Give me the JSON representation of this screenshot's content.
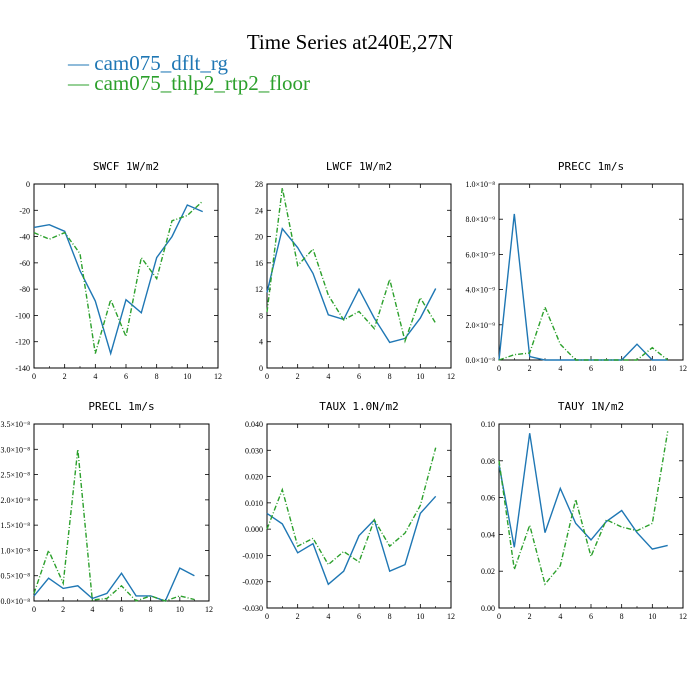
{
  "title": "Time Series at240E,27N",
  "legend": [
    {
      "label": "— cam075_dflt_rg",
      "color": "#1f77b4"
    },
    {
      "label": "— cam075_thlp2_rtp2_floor",
      "color": "#2ca02c"
    }
  ],
  "chart_data": [
    {
      "type": "line",
      "title": "SWCF   1W/m2",
      "x": [
        0,
        1,
        2,
        3,
        4,
        5,
        6,
        7,
        8,
        9,
        10,
        11
      ],
      "xlim": [
        0,
        12
      ],
      "ylim": [
        -140,
        0
      ],
      "xticks": [
        0,
        2,
        4,
        6,
        8,
        10,
        12
      ],
      "yticks": [
        {
          "v": 0,
          "label": "0"
        },
        {
          "v": -20,
          "label": "-20"
        },
        {
          "v": -40,
          "label": "-40"
        },
        {
          "v": -60,
          "label": "-60"
        },
        {
          "v": -80,
          "label": "-80"
        },
        {
          "v": -100,
          "label": "-100"
        },
        {
          "v": -120,
          "label": "-120"
        },
        {
          "v": -140,
          "label": "-140"
        }
      ],
      "series": [
        {
          "name": "cam075_dflt_rg",
          "color": "#1f77b4",
          "dashed": false,
          "values": [
            -33,
            -31,
            -36,
            -66,
            -89,
            -129,
            -88,
            -98,
            -56,
            -40,
            -16,
            -21
          ]
        },
        {
          "name": "cam075_thlp2_rtp2_floor",
          "color": "#2ca02c",
          "dashed": true,
          "values": [
            -37,
            -42,
            -37,
            -53,
            -129,
            -88,
            -116,
            -56,
            -72,
            -28,
            -24,
            -13
          ]
        }
      ]
    },
    {
      "type": "line",
      "title": "LWCF   1W/m2",
      "x": [
        0,
        1,
        2,
        3,
        4,
        5,
        6,
        7,
        8,
        9,
        10,
        11
      ],
      "xlim": [
        0,
        12
      ],
      "ylim": [
        0,
        28
      ],
      "xticks": [
        0,
        2,
        4,
        6,
        8,
        10,
        12
      ],
      "yticks": [
        {
          "v": 0,
          "label": "0"
        },
        {
          "v": 4,
          "label": "4"
        },
        {
          "v": 8,
          "label": "8"
        },
        {
          "v": 12,
          "label": "12"
        },
        {
          "v": 16,
          "label": "16"
        },
        {
          "v": 20,
          "label": "20"
        },
        {
          "v": 24,
          "label": "24"
        },
        {
          "v": 28,
          "label": "28"
        }
      ],
      "series": [
        {
          "name": "cam075_dflt_rg",
          "color": "#1f77b4",
          "dashed": false,
          "values": [
            11.5,
            21.2,
            18.3,
            14.4,
            8.1,
            7.4,
            12.0,
            7.6,
            3.9,
            4.5,
            7.6,
            12.1
          ]
        },
        {
          "name": "cam075_thlp2_rtp2_floor",
          "color": "#2ca02c",
          "dashed": true,
          "values": [
            8.5,
            27.4,
            15.6,
            18.1,
            11.1,
            7.3,
            8.6,
            6.0,
            13.5,
            4.1,
            10.7,
            6.8
          ]
        }
      ]
    },
    {
      "type": "line",
      "title": "PRECC   1m/s",
      "x": [
        0,
        1,
        2,
        3,
        4,
        5,
        6,
        7,
        8,
        9,
        10,
        11
      ],
      "xlim": [
        0,
        12
      ],
      "ylim": [
        0,
        1e-08
      ],
      "xticks": [
        0,
        2,
        4,
        6,
        8,
        10,
        12
      ],
      "yticks": [
        {
          "v": 0,
          "label": "0.0×10⁻⁸"
        },
        {
          "v": 2e-09,
          "label": "2.0×10⁻⁹"
        },
        {
          "v": 4e-09,
          "label": "4.0×10⁻⁹"
        },
        {
          "v": 6e-09,
          "label": "6.0×10⁻⁹"
        },
        {
          "v": 8e-09,
          "label": "8.0×10⁻⁹"
        },
        {
          "v": 1e-08,
          "label": "1.0×10⁻⁸"
        }
      ],
      "series": [
        {
          "name": "cam075_dflt_rg",
          "color": "#1f77b4",
          "dashed": false,
          "values": [
            0,
            8.3e-09,
            2e-10,
            0,
            0,
            0,
            0,
            0,
            0,
            9e-10,
            0,
            0
          ]
        },
        {
          "name": "cam075_thlp2_rtp2_floor",
          "color": "#2ca02c",
          "dashed": true,
          "values": [
            0,
            3e-10,
            4e-10,
            3e-09,
            9e-10,
            0,
            0,
            0,
            0,
            0,
            7e-10,
            0
          ]
        }
      ]
    },
    {
      "type": "line",
      "title": "PRECL   1m/s",
      "x": [
        0,
        1,
        2,
        3,
        4,
        5,
        6,
        7,
        8,
        9,
        10,
        11
      ],
      "xlim": [
        0,
        12
      ],
      "ylim": [
        0,
        3.5e-08
      ],
      "xticks": [
        0,
        2,
        4,
        6,
        8,
        10,
        12
      ],
      "yticks": [
        {
          "v": 0,
          "label": "0.0×10⁻⁸"
        },
        {
          "v": 5e-09,
          "label": "0.5×10⁻⁸"
        },
        {
          "v": 1e-08,
          "label": "1.0×10⁻⁸"
        },
        {
          "v": 1.5e-08,
          "label": "1.5×10⁻⁸"
        },
        {
          "v": 2e-08,
          "label": "2.0×10⁻⁸"
        },
        {
          "v": 2.5e-08,
          "label": "2.5×10⁻⁸"
        },
        {
          "v": 3e-08,
          "label": "3.0×10⁻⁸"
        },
        {
          "v": 3.5e-08,
          "label": "3.5×10⁻⁸"
        }
      ],
      "series": [
        {
          "name": "cam075_dflt_rg",
          "color": "#1f77b4",
          "dashed": false,
          "values": [
            1e-09,
            4.5e-09,
            2.5e-09,
            3e-09,
            5e-10,
            1.5e-09,
            5.5e-09,
            1e-09,
            1e-09,
            0,
            6.5e-09,
            5e-09
          ]
        },
        {
          "name": "cam075_thlp2_rtp2_floor",
          "color": "#2ca02c",
          "dashed": true,
          "values": [
            1.5e-09,
            1e-08,
            3.5e-09,
            3e-08,
            2e-10,
            5e-10,
            3e-09,
            0,
            1e-09,
            0,
            1e-09,
            3e-10
          ]
        }
      ]
    },
    {
      "type": "line",
      "title": "TAUX   1.0N/m2",
      "x": [
        0,
        1,
        2,
        3,
        4,
        5,
        6,
        7,
        8,
        9,
        10,
        11
      ],
      "xlim": [
        0,
        12
      ],
      "ylim": [
        -0.03,
        0.04
      ],
      "xticks": [
        0,
        2,
        4,
        6,
        8,
        10,
        12
      ],
      "yticks": [
        {
          "v": 0.04,
          "label": "0.040"
        },
        {
          "v": 0.03,
          "label": "0.030"
        },
        {
          "v": 0.02,
          "label": "0.020"
        },
        {
          "v": 0.01,
          "label": "0.010"
        },
        {
          "v": 0.0,
          "label": "0.000"
        },
        {
          "v": -0.01,
          "label": "-0.010"
        },
        {
          "v": -0.02,
          "label": "-0.020"
        },
        {
          "v": -0.03,
          "label": "-0.030"
        }
      ],
      "series": [
        {
          "name": "cam075_dflt_rg",
          "color": "#1f77b4",
          "dashed": false,
          "values": [
            0.006,
            0.002,
            -0.009,
            -0.0055,
            -0.021,
            -0.016,
            -0.0025,
            0.0035,
            -0.016,
            -0.0135,
            0.006,
            0.0125
          ]
        },
        {
          "name": "cam075_thlp2_rtp2_floor",
          "color": "#2ca02c",
          "dashed": true,
          "values": [
            0.0,
            0.015,
            -0.0065,
            -0.0035,
            -0.0135,
            -0.0085,
            -0.0125,
            0.0035,
            -0.0065,
            -0.0015,
            0.009,
            0.031
          ]
        }
      ]
    },
    {
      "type": "line",
      "title": "TAUY   1N/m2",
      "x": [
        0,
        1,
        2,
        3,
        4,
        5,
        6,
        7,
        8,
        9,
        10,
        11
      ],
      "xlim": [
        0,
        12
      ],
      "ylim": [
        0,
        0.1
      ],
      "xticks": [
        0,
        2,
        4,
        6,
        8,
        10,
        12
      ],
      "yticks": [
        {
          "v": 0.0,
          "label": "0.00"
        },
        {
          "v": 0.02,
          "label": "0.02"
        },
        {
          "v": 0.04,
          "label": "0.04"
        },
        {
          "v": 0.06,
          "label": "0.06"
        },
        {
          "v": 0.08,
          "label": "0.08"
        },
        {
          "v": 0.1,
          "label": "0.10"
        }
      ],
      "series": [
        {
          "name": "cam075_dflt_rg",
          "color": "#1f77b4",
          "dashed": false,
          "values": [
            0.078,
            0.033,
            0.095,
            0.041,
            0.065,
            0.046,
            0.037,
            0.047,
            0.053,
            0.041,
            0.032,
            0.034
          ]
        },
        {
          "name": "cam075_thlp2_rtp2_floor",
          "color": "#2ca02c",
          "dashed": true,
          "values": [
            0.08,
            0.021,
            0.045,
            0.013,
            0.023,
            0.059,
            0.028,
            0.048,
            0.044,
            0.042,
            0.046,
            0.096
          ]
        }
      ]
    }
  ]
}
